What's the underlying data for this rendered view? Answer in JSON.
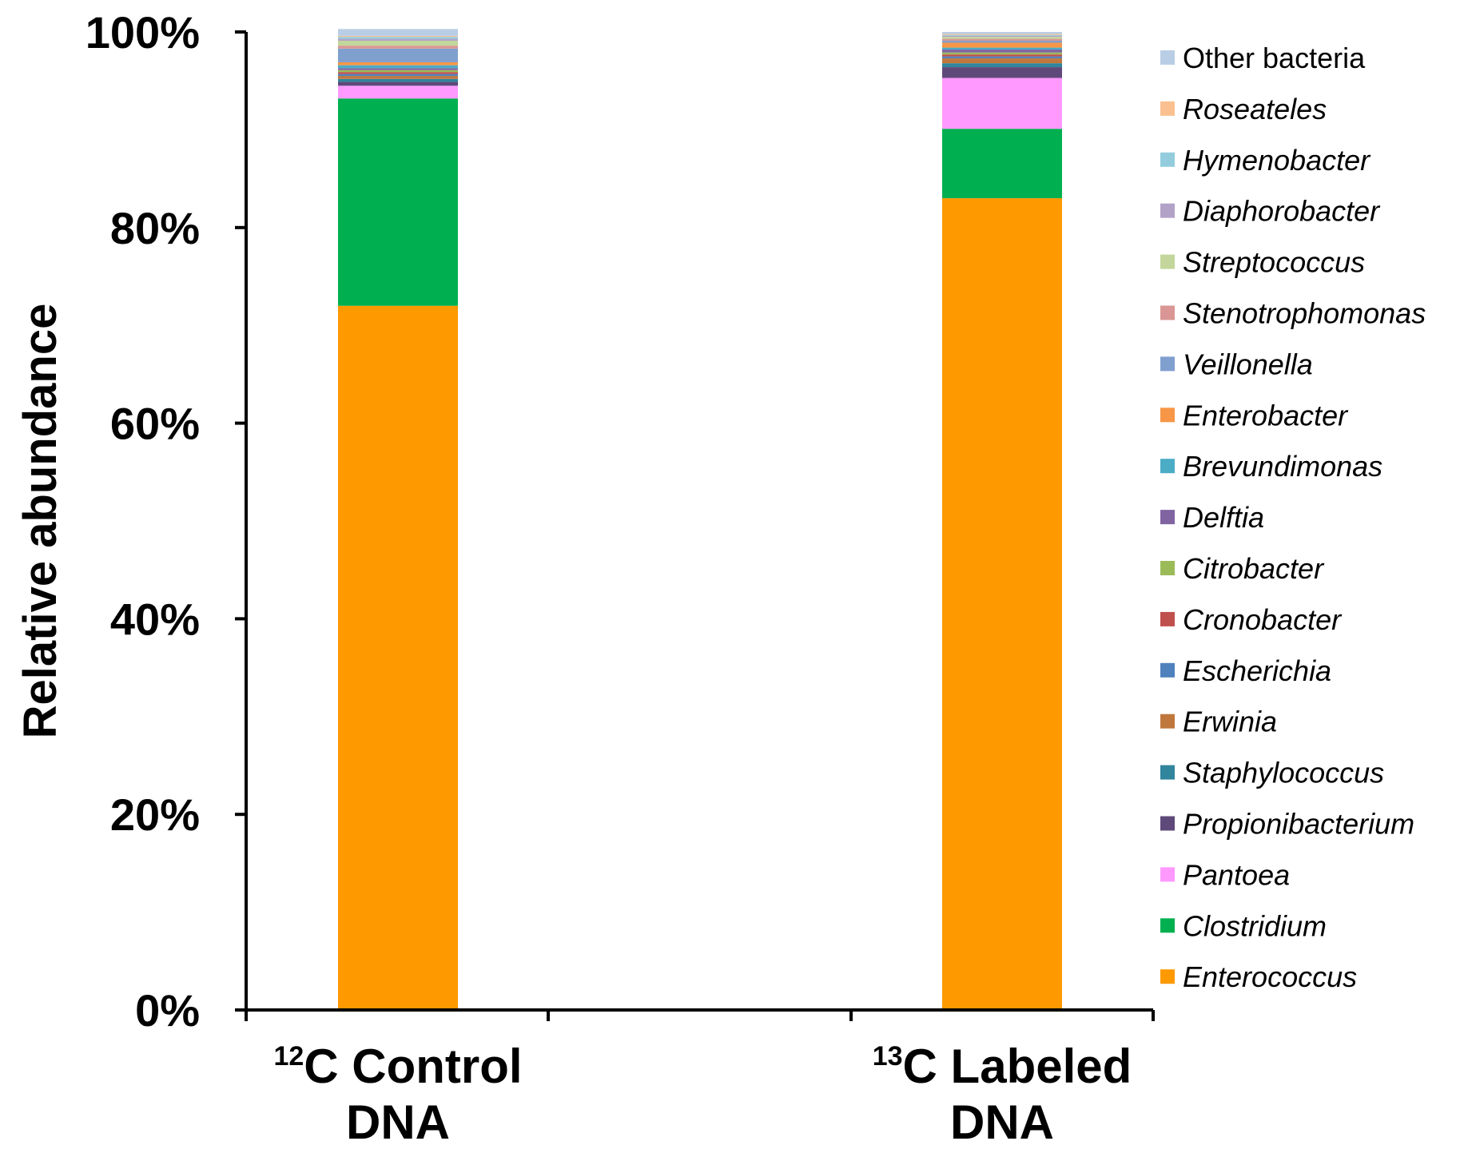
{
  "chart_data": {
    "type": "bar",
    "stacked": true,
    "ylabel": "Relative abundance",
    "ylim": [
      0,
      100
    ],
    "yticks": [
      "0%",
      "20%",
      "40%",
      "60%",
      "80%",
      "100%"
    ],
    "yticks_values": [
      0,
      20,
      40,
      60,
      80,
      100
    ],
    "categories": [
      {
        "sup": "12",
        "line1": "C Control",
        "line2": "DNA"
      },
      {
        "sup": "13",
        "line1": "C Labeled",
        "line2": "DNA"
      }
    ],
    "legend_position": "right",
    "series": [
      {
        "name": "Enterococcus",
        "italic": true,
        "color": "#FF9900",
        "values": [
          72.0,
          83.0
        ]
      },
      {
        "name": "Clostridium",
        "italic": true,
        "color": "#00B050",
        "values": [
          21.2,
          7.1
        ]
      },
      {
        "name": "Pantoea",
        "italic": true,
        "color": "#FF99FF",
        "values": [
          1.3,
          5.2
        ]
      },
      {
        "name": "Propionibacterium",
        "italic": true,
        "color": "#5F497A",
        "values": [
          0.4,
          1.1
        ]
      },
      {
        "name": "Staphylococcus",
        "italic": true,
        "color": "#31859C",
        "values": [
          0.3,
          0.4
        ]
      },
      {
        "name": "Erwinia",
        "italic": true,
        "color": "#C0773C",
        "values": [
          0.3,
          0.5
        ]
      },
      {
        "name": "Escherichia",
        "italic": true,
        "color": "#4F81BD",
        "values": [
          0.2,
          0.2
        ]
      },
      {
        "name": "Cronobacter",
        "italic": true,
        "color": "#C0504D",
        "values": [
          0.2,
          0.2
        ]
      },
      {
        "name": "Citrobacter",
        "italic": true,
        "color": "#9BBB59",
        "values": [
          0.2,
          0.2
        ]
      },
      {
        "name": "Delftia",
        "italic": true,
        "color": "#8064A2",
        "values": [
          0.2,
          0.3
        ]
      },
      {
        "name": "Brevundimonas",
        "italic": true,
        "color": "#4BACC6",
        "values": [
          0.3,
          0.2
        ]
      },
      {
        "name": "Enterobacter",
        "italic": true,
        "color": "#F79646",
        "values": [
          0.3,
          0.5
        ]
      },
      {
        "name": "Veillonella",
        "italic": true,
        "color": "#7F9FCF",
        "values": [
          1.4,
          0.2
        ]
      },
      {
        "name": "Stenotrophomonas",
        "italic": true,
        "color": "#D99694",
        "values": [
          0.3,
          0.2
        ]
      },
      {
        "name": "Streptococcus",
        "italic": true,
        "color": "#C3D69B",
        "values": [
          0.5,
          0.2
        ]
      },
      {
        "name": "Diaphorobacter",
        "italic": true,
        "color": "#B3A2C7",
        "values": [
          0.2,
          0.1
        ]
      },
      {
        "name": "Hymenobacter",
        "italic": true,
        "color": "#93CDDD",
        "values": [
          0.2,
          0.1
        ]
      },
      {
        "name": "Roseateles",
        "italic": true,
        "color": "#FAC090",
        "values": [
          0.1,
          0.1
        ]
      },
      {
        "name": "Other bacteria",
        "italic": false,
        "color": "#B9CDE5",
        "values": [
          0.7,
          0.2
        ]
      }
    ]
  }
}
